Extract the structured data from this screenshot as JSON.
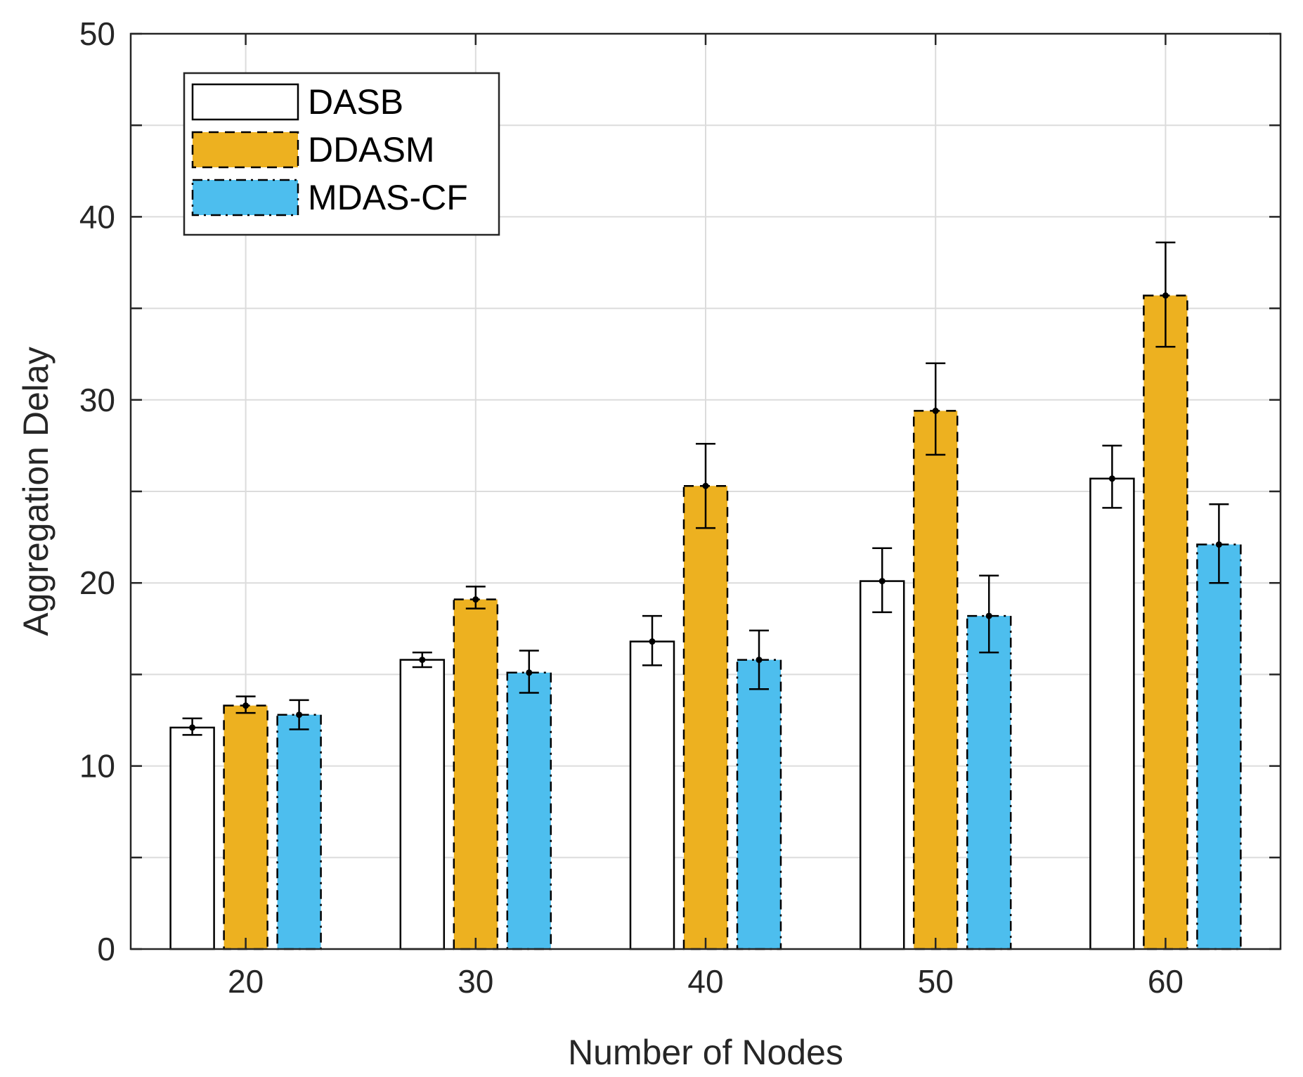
{
  "chart_data": {
    "type": "bar",
    "title": "",
    "xlabel": "Number of Nodes",
    "ylabel": "Aggregation Delay",
    "categories": [
      "20",
      "30",
      "40",
      "50",
      "60"
    ],
    "ylim": [
      0,
      50
    ],
    "yticks": [
      "0",
      "10",
      "20",
      "30",
      "40",
      "50"
    ],
    "grid": true,
    "legend_position": "top-left",
    "series": [
      {
        "name": "DASB",
        "color": "#ffffff",
        "line_style": "solid",
        "values": [
          12.1,
          15.8,
          16.8,
          20.1,
          25.7
        ],
        "error_low": [
          11.7,
          15.4,
          15.5,
          18.4,
          24.1
        ],
        "error_high": [
          12.6,
          16.2,
          18.2,
          21.9,
          27.5
        ]
      },
      {
        "name": "DDASM",
        "color": "#EDB120",
        "line_style": "dashed",
        "values": [
          13.3,
          19.1,
          25.3,
          29.4,
          35.7
        ],
        "error_low": [
          12.9,
          18.6,
          23.0,
          27.0,
          32.9
        ],
        "error_high": [
          13.8,
          19.8,
          27.6,
          32.0,
          38.6
        ]
      },
      {
        "name": "MDAS-CF",
        "color": "#4DBEEE",
        "line_style": "dashdot",
        "values": [
          12.8,
          15.1,
          15.8,
          18.2,
          22.1
        ],
        "error_low": [
          12.0,
          14.0,
          14.2,
          16.2,
          20.0
        ],
        "error_high": [
          13.6,
          16.3,
          17.4,
          20.4,
          24.3
        ]
      }
    ]
  }
}
